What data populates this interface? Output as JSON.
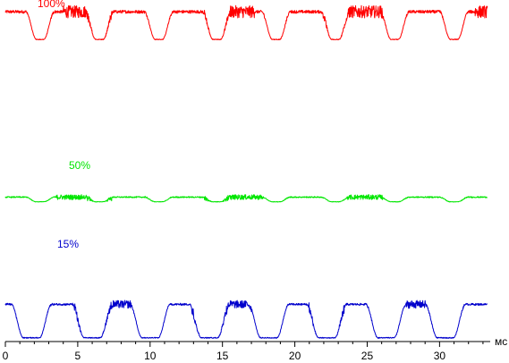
{
  "chart_data": {
    "type": "line",
    "xunit": "мс",
    "xlim": [
      0,
      33.5
    ],
    "xticks": [
      0,
      5,
      10,
      15,
      20,
      25,
      30
    ],
    "minor_tick_step": 1,
    "grid": false,
    "series": [
      {
        "name": "100%",
        "color": "#ff0000",
        "base_level": 0.94,
        "dip_level": 0.58,
        "high_noise": 0.02,
        "dip_centers": [
          2.4,
          6.5,
          10.6,
          14.6,
          18.7,
          22.8,
          26.9,
          31.0
        ],
        "noisy_plateaus": [
          [
            4.0,
            6.0
          ],
          [
            15.2,
            17.2
          ],
          [
            23.6,
            26.1
          ],
          [
            32.4,
            33.3
          ]
        ],
        "noisy_dips": [
          6.5,
          14.6,
          22.8
        ]
      },
      {
        "name": "50%",
        "color": "#00e600",
        "base_level": 0.44,
        "dip_level": 0.35,
        "high_noise": 0.012,
        "dip_centers": [
          2.4,
          6.5,
          10.6,
          14.6,
          18.7,
          22.8,
          26.9,
          31.0
        ],
        "noisy_plateaus": [
          [
            3.5,
            6.0
          ],
          [
            15.0,
            17.8
          ],
          [
            23.5,
            26.4
          ]
        ],
        "noisy_dips": [
          6.5,
          14.6,
          27.0
        ]
      },
      {
        "name": "15%",
        "color": "#0000cc",
        "base_level": 0.36,
        "dip_level": 0.02,
        "high_noise": 0.01,
        "dip_centers": [
          1.8,
          6.0,
          10.0,
          14.1,
          18.2,
          22.2,
          26.3,
          30.4
        ],
        "noisy_plateaus": [
          [
            7.2,
            8.7
          ],
          [
            15.3,
            17.3
          ],
          [
            27.6,
            29.1
          ]
        ],
        "noisy_dips": [
          6.0,
          14.1,
          22.2
        ]
      }
    ]
  }
}
